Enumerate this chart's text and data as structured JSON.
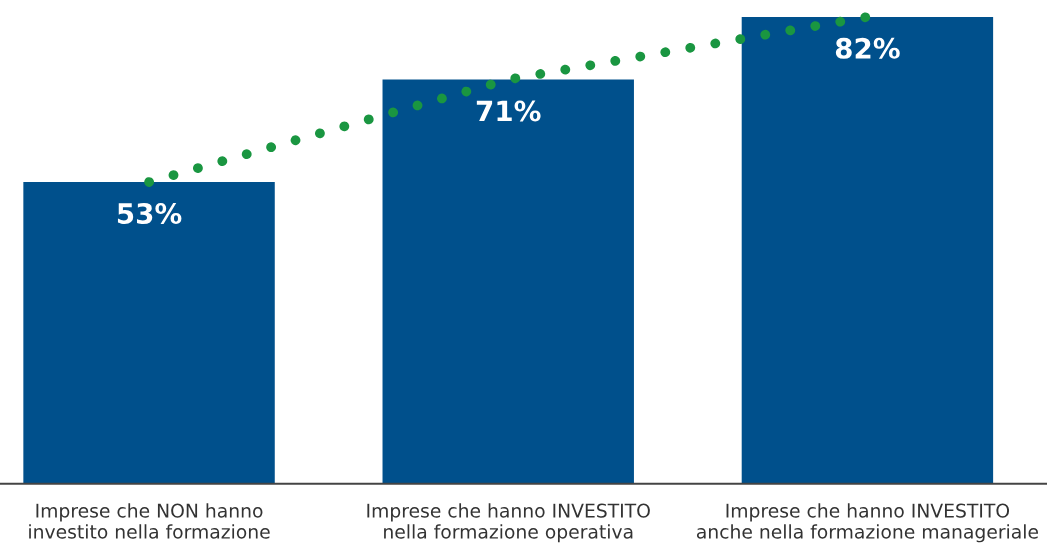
{
  "chart_data": {
    "type": "bar",
    "categories": [
      "Imprese che NON hanno\ninvestito nella formazione",
      "Imprese che hanno INVESTITO\nnella formazione operativa",
      "Imprese che hanno INVESTITO\nanche nella formazione manageriale"
    ],
    "series": [
      {
        "color": "#00508c",
        "values": [
          53,
          71,
          82
        ],
        "value_labels": [
          "53%",
          "71%",
          "82%"
        ]
      },
      {
        "type": "line",
        "color": "#1a9641",
        "values": [
          53,
          71,
          82
        ],
        "line_style": "dotted"
      }
    ],
    "tick_labels": "x",
    "grid": false,
    "legend": false
  }
}
